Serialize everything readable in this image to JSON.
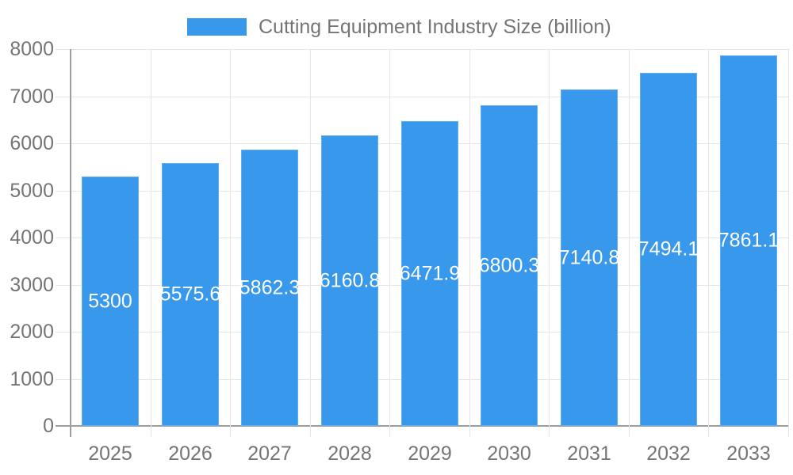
{
  "chart_data": {
    "type": "bar",
    "title": "",
    "legend": {
      "label": "Cutting Equipment Industry Size (billion)",
      "position": "top"
    },
    "categories": [
      "2025",
      "2026",
      "2027",
      "2028",
      "2029",
      "2030",
      "2031",
      "2032",
      "2033"
    ],
    "values": [
      5300,
      5575.6,
      5862.3,
      6160.8,
      6471.9,
      6800.3,
      7140.8,
      7494.1,
      7861.1
    ],
    "bar_labels": [
      "5300",
      "5575.6",
      "5862.3",
      "6160.8",
      "6471.9",
      "6800.3",
      "7140.8",
      "7494.1",
      "7861.1"
    ],
    "xlabel": "",
    "ylabel": "",
    "ylim": [
      0,
      8000
    ],
    "yticks": [
      0,
      1000,
      2000,
      3000,
      4000,
      5000,
      6000,
      7000,
      8000
    ],
    "ytick_labels": [
      "0",
      "1000",
      "2000",
      "3000",
      "4000",
      "5000",
      "6000",
      "7000",
      "8000"
    ],
    "grid": true,
    "colors": {
      "bar": "#3898ec",
      "bar_label": "#ffffff",
      "axis_text": "#757575",
      "gridline": "#e6e6e6",
      "axis_line": "#9e9e9e",
      "background": "#ffffff"
    }
  }
}
